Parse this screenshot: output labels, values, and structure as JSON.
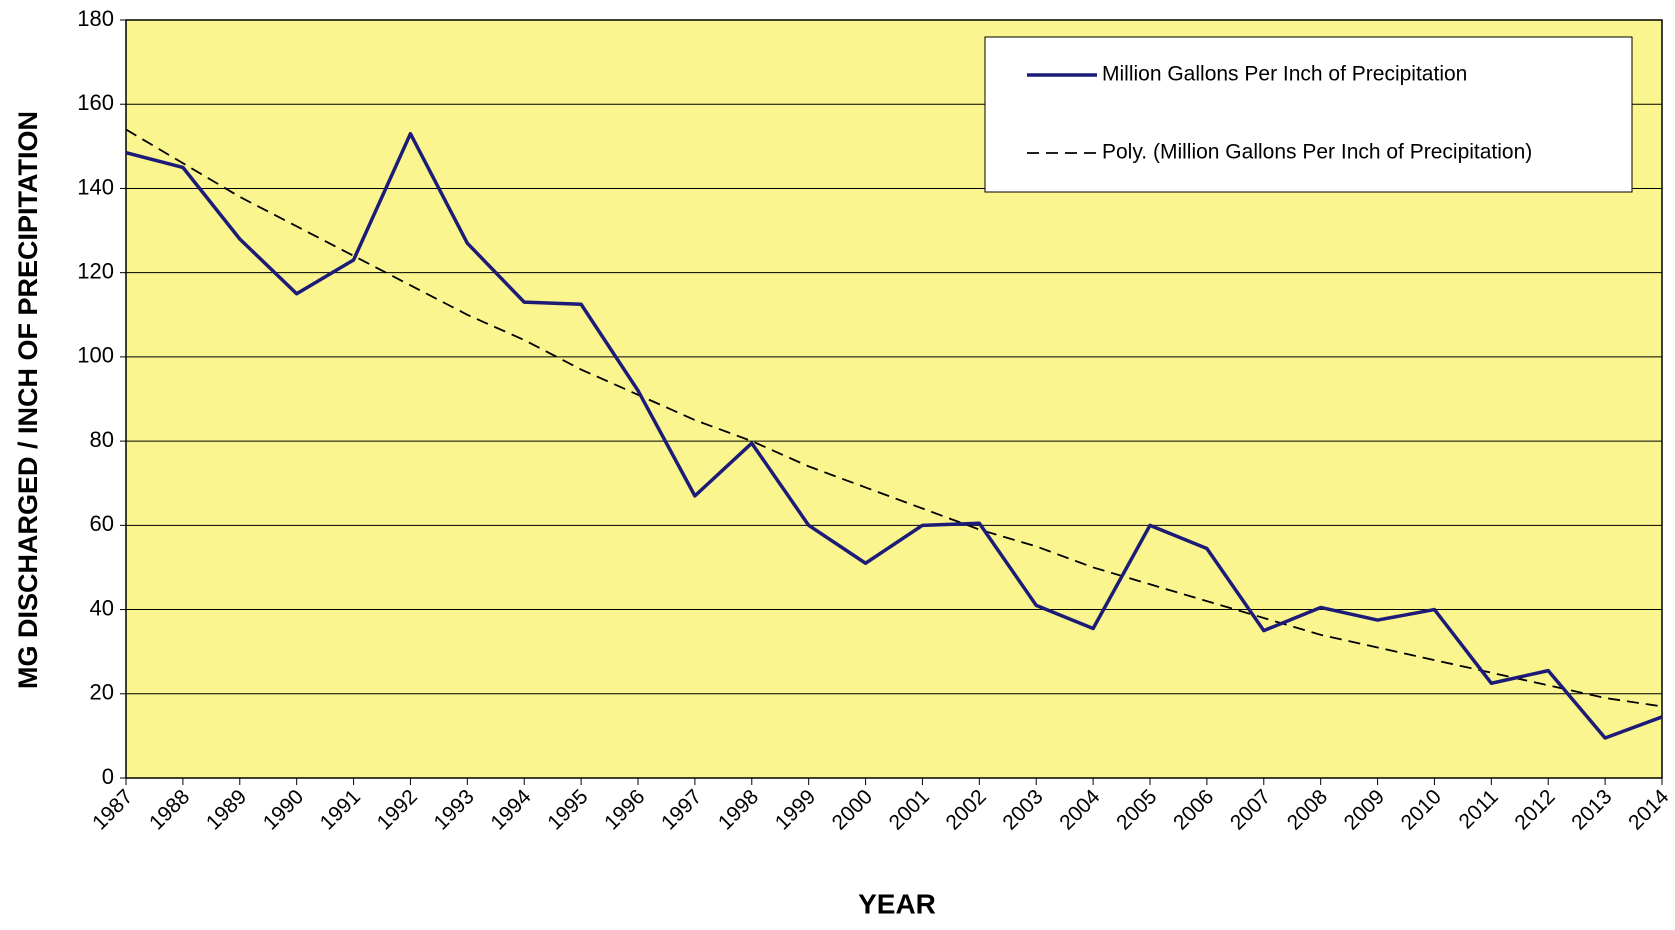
{
  "chart_data": {
    "type": "line",
    "x_label": "YEAR",
    "y_label": "MG DISCHARGED / INCH OF PRECIPITATION",
    "categories": [
      "1987",
      "1988",
      "1989",
      "1990",
      "1991",
      "1992",
      "1993",
      "1994",
      "1995",
      "1996",
      "1997",
      "1998",
      "1999",
      "2000",
      "2001",
      "2002",
      "2003",
      "2004",
      "2005",
      "2006",
      "2007",
      "2008",
      "2009",
      "2010",
      "2011",
      "2012",
      "2013",
      "2014"
    ],
    "series": [
      {
        "name": "Million Gallons Per Inch of Precipitation",
        "color": "#1c1c78",
        "dashed": false,
        "values": [
          148.5,
          145,
          128,
          115,
          123,
          153,
          127,
          113,
          112.5,
          92,
          67,
          79.5,
          60,
          51,
          60,
          60.5,
          41,
          35.5,
          60,
          54.5,
          35,
          40.5,
          37.5,
          40,
          22.5,
          25.5,
          9.5,
          14.5
        ]
      },
      {
        "name": "Poly. (Million Gallons Per Inch of Precipitation)",
        "color": "#000000",
        "dashed": true,
        "values": [
          154,
          146,
          138,
          131,
          124,
          117,
          110,
          104,
          97,
          91,
          85,
          80,
          74,
          69,
          64,
          59,
          55,
          50,
          46,
          42,
          38,
          34,
          31,
          28,
          25,
          22,
          19,
          17
        ]
      }
    ],
    "ylim": [
      0,
      180
    ],
    "yticks": [
      0,
      20,
      40,
      60,
      80,
      100,
      120,
      140,
      160,
      180
    ],
    "grid": true,
    "legend": "top-right",
    "background": "#fbf590"
  }
}
